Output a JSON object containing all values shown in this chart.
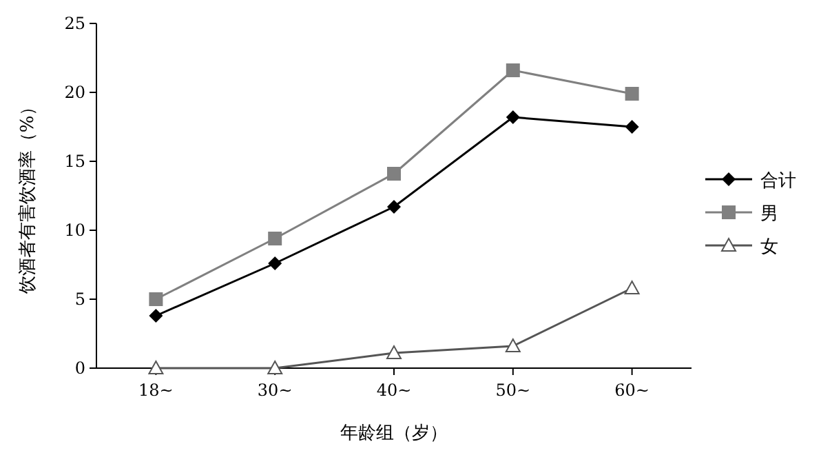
{
  "chart_data": {
    "type": "line",
    "xlabel": "年龄组（岁）",
    "ylabel": "饮酒者有害饮酒率（%）",
    "categories": [
      "18~",
      "30~",
      "40~",
      "50~",
      "60~"
    ],
    "series": [
      {
        "name": "合计",
        "color": "#000000",
        "marker": "diamond",
        "values": [
          3.8,
          7.6,
          11.7,
          18.2,
          17.5
        ]
      },
      {
        "name": "男",
        "color": "#808080",
        "marker": "square",
        "values": [
          5.0,
          9.4,
          14.1,
          21.6,
          19.9
        ]
      },
      {
        "name": "女",
        "color": "#555555",
        "marker": "triangle",
        "values": [
          0,
          0,
          1.1,
          1.6,
          5.8
        ]
      }
    ],
    "ylim": [
      0,
      25
    ],
    "yticks": [
      0,
      5,
      10,
      15,
      20,
      25
    ],
    "grid": false,
    "legend": "right"
  }
}
